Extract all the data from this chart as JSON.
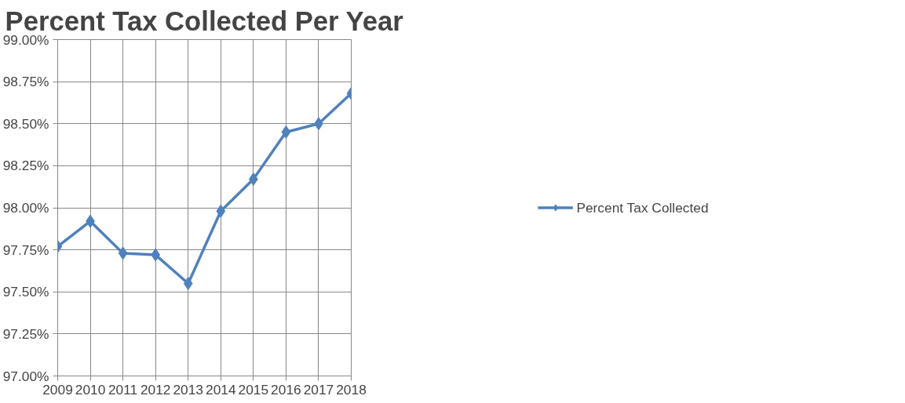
{
  "chart_data": {
    "type": "line",
    "title": "Percent Tax Collected Per Year",
    "categories": [
      "2009",
      "2010",
      "2011",
      "2012",
      "2013",
      "2014",
      "2015",
      "2016",
      "2017",
      "2018"
    ],
    "series": [
      {
        "name": "Percent Tax Collected",
        "color": "#4f81bd",
        "values": [
          97.77,
          97.92,
          97.73,
          97.72,
          97.55,
          97.98,
          98.17,
          98.45,
          98.5,
          98.68
        ]
      }
    ],
    "ylim": [
      97,
      99
    ],
    "yticks": [
      {
        "value": 97,
        "label": "97.00%"
      },
      {
        "value": 97.25,
        "label": "97.25%"
      },
      {
        "value": 97.5,
        "label": "97.50%"
      },
      {
        "value": 97.75,
        "label": "97.75%"
      },
      {
        "value": 98,
        "label": "98.00%"
      },
      {
        "value": 98.25,
        "label": "98.25%"
      },
      {
        "value": 98.5,
        "label": "98.50%"
      },
      {
        "value": 98.75,
        "label": "98.75%"
      },
      {
        "value": 99,
        "label": "99.00%"
      }
    ],
    "grid": true,
    "legend": "right",
    "marker": "diamond",
    "line_style": "solid"
  }
}
